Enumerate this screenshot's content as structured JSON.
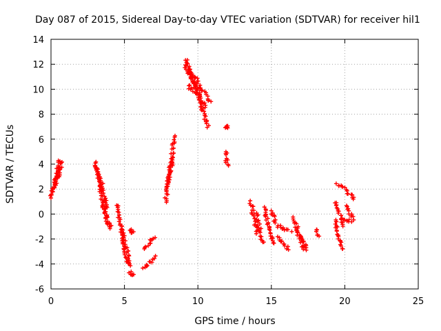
{
  "chart_data": {
    "type": "scatter",
    "title": "Day 087 of 2015, Sidereal Day-to-day VTEC variation (SDTVAR) for receiver hil1",
    "xlabel": "GPS time / hours",
    "ylabel": "SDTVAR / TECUs",
    "xlim": [
      0,
      25
    ],
    "ylim": [
      -6,
      14
    ],
    "xticks": [
      0,
      5,
      10,
      15,
      20,
      25
    ],
    "yticks": [
      -6,
      -4,
      -2,
      0,
      2,
      4,
      6,
      8,
      10,
      12,
      14
    ],
    "grid": true,
    "marker": "+",
    "series_color": "#ff0000",
    "segments": [
      {
        "x": [
          0.0,
          0.7
        ],
        "y": [
          1.3,
          4.2
        ]
      },
      {
        "x": [
          0.1,
          0.7
        ],
        "y": [
          1.8,
          3.8
        ]
      },
      {
        "x": [
          0.3,
          0.6
        ],
        "y": [
          2.6,
          4.3
        ]
      },
      {
        "x": [
          3.0,
          3.8
        ],
        "y": [
          4.1,
          0.6
        ]
      },
      {
        "x": [
          3.0,
          3.6
        ],
        "y": [
          3.8,
          2.0
        ]
      },
      {
        "x": [
          3.3,
          3.9
        ],
        "y": [
          2.2,
          -1.0
        ]
      },
      {
        "x": [
          3.5,
          4.1
        ],
        "y": [
          0.8,
          -1.2
        ]
      },
      {
        "x": [
          4.5,
          5.2
        ],
        "y": [
          0.8,
          -4.0
        ]
      },
      {
        "x": [
          4.8,
          5.4
        ],
        "y": [
          -1.0,
          -4.2
        ]
      },
      {
        "x": [
          5.4,
          5.6
        ],
        "y": [
          -4.6,
          -5.0
        ]
      },
      {
        "x": [
          5.4,
          5.6
        ],
        "y": [
          -1.3,
          -1.5
        ]
      },
      {
        "x": [
          6.4,
          7.0
        ],
        "y": [
          -2.8,
          -1.8
        ]
      },
      {
        "x": [
          6.3,
          7.1
        ],
        "y": [
          -4.4,
          -3.4
        ]
      },
      {
        "x": [
          7.8,
          8.4
        ],
        "y": [
          1.0,
          6.2
        ]
      },
      {
        "x": [
          7.9,
          8.3
        ],
        "y": [
          2.0,
          4.5
        ]
      },
      {
        "x": [
          9.1,
          10.5
        ],
        "y": [
          12.0,
          8.5
        ]
      },
      {
        "x": [
          9.2,
          10.7
        ],
        "y": [
          12.4,
          7.0
        ]
      },
      {
        "x": [
          9.5,
          10.8
        ],
        "y": [
          11.5,
          9.0
        ]
      },
      {
        "x": [
          9.3,
          9.8
        ],
        "y": [
          10.3,
          9.8
        ]
      },
      {
        "x": [
          11.9,
          12.0
        ],
        "y": [
          7.0,
          7.0
        ]
      },
      {
        "x": [
          11.9,
          12.0
        ],
        "y": [
          5.0,
          3.8
        ]
      },
      {
        "x": [
          13.6,
          14.0
        ],
        "y": [
          1.0,
          -1.5
        ]
      },
      {
        "x": [
          14.0,
          14.4
        ],
        "y": [
          0.0,
          -2.3
        ]
      },
      {
        "x": [
          14.5,
          15.1
        ],
        "y": [
          0.5,
          -2.4
        ]
      },
      {
        "x": [
          15.0,
          15.4
        ],
        "y": [
          0.3,
          -1.0
        ]
      },
      {
        "x": [
          15.4,
          16.2
        ],
        "y": [
          -1.8,
          -2.8
        ]
      },
      {
        "x": [
          15.6,
          16.3
        ],
        "y": [
          -1.0,
          -1.4
        ]
      },
      {
        "x": [
          16.5,
          17.3
        ],
        "y": [
          -0.3,
          -3.0
        ]
      },
      {
        "x": [
          16.7,
          17.4
        ],
        "y": [
          -1.4,
          -2.6
        ]
      },
      {
        "x": [
          18.1,
          18.2
        ],
        "y": [
          -1.2,
          -1.8
        ]
      },
      {
        "x": [
          19.3,
          19.8
        ],
        "y": [
          -0.5,
          -2.8
        ]
      },
      {
        "x": [
          19.4,
          19.9
        ],
        "y": [
          1.0,
          -1.0
        ]
      },
      {
        "x": [
          19.4,
          20.0
        ],
        "y": [
          2.4,
          2.1
        ]
      },
      {
        "x": [
          20.1,
          20.6
        ],
        "y": [
          1.9,
          1.2
        ]
      },
      {
        "x": [
          20.1,
          20.6
        ],
        "y": [
          0.6,
          -0.4
        ]
      },
      {
        "x": [
          20.0,
          20.4
        ],
        "y": [
          -0.4,
          -0.6
        ]
      }
    ]
  }
}
